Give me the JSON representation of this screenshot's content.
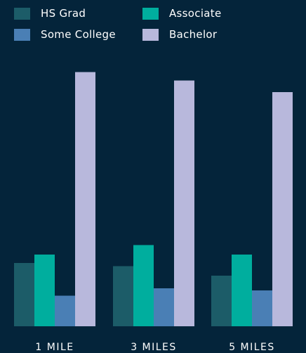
{
  "chart_data": {
    "type": "bar",
    "title": "",
    "xlabel": "",
    "ylabel": "",
    "categories": [
      "1 MILE",
      "3 MILES",
      "5 MILES"
    ],
    "series": [
      {
        "name": "HS Grad",
        "color": "#1c5c68",
        "values": [
          60,
          57,
          48
        ]
      },
      {
        "name": "Associate",
        "color": "#00ae9e",
        "values": [
          68,
          77,
          68
        ]
      },
      {
        "name": "Some College",
        "color": "#4a7fb5",
        "values": [
          29,
          36,
          34
        ]
      },
      {
        "name": "Bachelor",
        "color": "#b8b8dc",
        "values": [
          241,
          233,
          222
        ]
      }
    ],
    "ylim": [
      0,
      250
    ],
    "grid": false,
    "legend_position": "top-left"
  },
  "colors": {
    "background": "#04243a",
    "text": "#ffffff"
  }
}
